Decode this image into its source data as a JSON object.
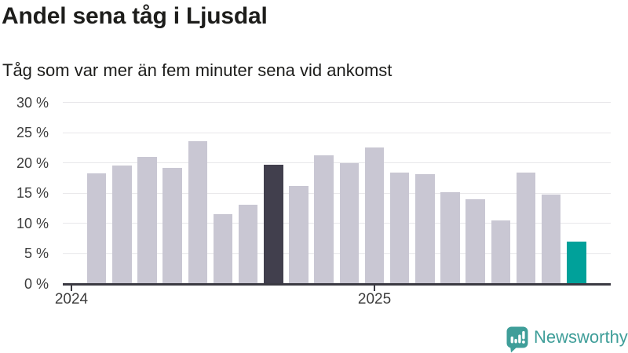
{
  "header": {
    "title": "Andel sena tåg i Ljusdal",
    "subtitle": "Tåg som var mer än fem minuter sena vid ankomst"
  },
  "footer": {
    "brand": "Newsworthy"
  },
  "chart_data": {
    "type": "bar",
    "title": "Andel sena tåg i Ljusdal",
    "subtitle": "Tåg som var mer än fem minuter sena vid ankomst",
    "unit": "%",
    "x": [
      "2024-02",
      "2024-03",
      "2024-04",
      "2024-05",
      "2024-06",
      "2024-07",
      "2024-08",
      "2024-09",
      "2024-10",
      "2024-11",
      "2024-12",
      "2025-01",
      "2025-02",
      "2025-03",
      "2025-04",
      "2025-05",
      "2025-06",
      "2025-07",
      "2025-08",
      "2025-09"
    ],
    "values": [
      18.2,
      19.6,
      21.0,
      19.1,
      23.6,
      11.5,
      13.1,
      19.7,
      16.2,
      21.2,
      20.0,
      22.5,
      18.4,
      18.1,
      15.1,
      14.0,
      10.5,
      18.4,
      14.7,
      6.9
    ],
    "highlight_dark_index": 7,
    "highlight_teal_index": 19,
    "ylim": [
      0,
      30
    ],
    "grid": "horizontal",
    "legend": "none",
    "y_ticks": [
      {
        "value": 30,
        "label": "30 %"
      },
      {
        "value": 25,
        "label": "25 %"
      },
      {
        "value": 20,
        "label": "20 %"
      },
      {
        "value": 15,
        "label": "15 %"
      },
      {
        "value": 10,
        "label": "10 %"
      },
      {
        "value": 5,
        "label": "5 %"
      },
      {
        "value": 0,
        "label": "0 %"
      }
    ],
    "x_ticks": [
      {
        "label": "2024",
        "month_offset": 0
      },
      {
        "label": "2025",
        "month_offset": 12
      }
    ],
    "colors": {
      "bar_default": "#c9c7d3",
      "bar_dark": "#413f4d",
      "bar_teal": "#00a19a",
      "gridline": "#e8e7ea",
      "axis": "#3b3a42",
      "text": "#3d3d3d",
      "brand": "#3f9e99"
    }
  }
}
